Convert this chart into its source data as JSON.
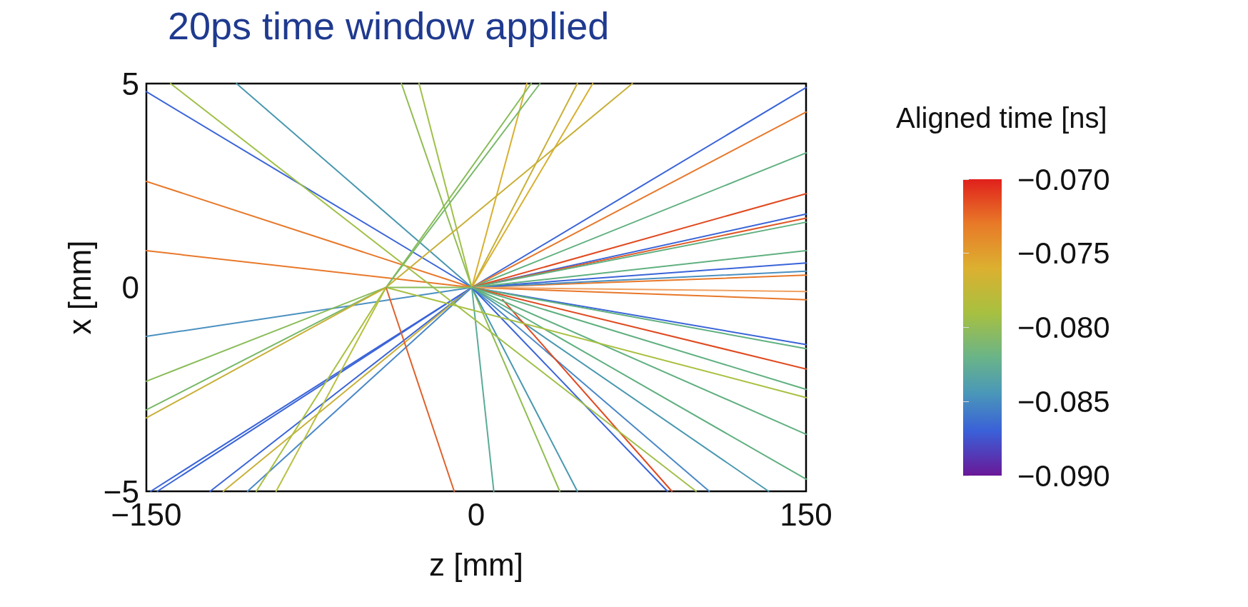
{
  "chart_data": {
    "type": "line",
    "title": "20ps time window applied",
    "xlabel": "z [mm]",
    "ylabel": "x [mm]",
    "clabel": "Aligned time [ns]",
    "xlim": [
      -150,
      150
    ],
    "xticks": [
      {
        "value": -150,
        "label": "−150"
      },
      0,
      150
    ],
    "ylim": [
      -5,
      5
    ],
    "yticks": [
      {
        "value": -5,
        "label": "−5"
      },
      0,
      5
    ],
    "clim": [
      -0.09,
      -0.07
    ],
    "cticks": [
      {
        "value": -0.09,
        "label": "−0.090"
      },
      {
        "value": -0.085,
        "label": "−0.085"
      },
      {
        "value": -0.08,
        "label": "−0.080"
      },
      {
        "value": -0.075,
        "label": "−0.075"
      },
      {
        "value": -0.07,
        "label": "−0.070"
      }
    ],
    "marker": "none",
    "series": [
      {
        "color": "#3a64d8",
        "x": [
          -150,
          -2,
          150
        ],
        "values": [
          4.8,
          0,
          -1.4
        ]
      },
      {
        "color": "#e8782a",
        "x": [
          -150,
          -2,
          150
        ],
        "values": [
          2.6,
          0,
          0.3
        ]
      },
      {
        "color": "#e8782a",
        "x": [
          -150,
          -2,
          150
        ],
        "values": [
          0.9,
          0,
          -0.3
        ]
      },
      {
        "color": "#4a90c0",
        "x": [
          -150,
          -2,
          150
        ],
        "values": [
          -1.2,
          0,
          0.4
        ]
      },
      {
        "color": "#3a64d8",
        "x": [
          -148,
          -2,
          150
        ],
        "values": [
          -5,
          0,
          4.9
        ]
      },
      {
        "color": "#3a64d8",
        "x": [
          -145,
          -2,
          150
        ],
        "values": [
          -5,
          0,
          1.8
        ]
      },
      {
        "color": "#3a64d8",
        "x": [
          -121,
          -2,
          150
        ],
        "values": [
          -5,
          0,
          0.6
        ]
      },
      {
        "color": "#c8b038",
        "x": [
          -115,
          -2,
          46
        ],
        "values": [
          -5,
          0,
          5
        ]
      },
      {
        "color": "#4a88c8",
        "x": [
          -104,
          -2,
          106
        ],
        "values": [
          -5,
          0,
          -5
        ]
      },
      {
        "color": "#4a98b0",
        "x": [
          -109,
          -2,
          133
        ],
        "values": [
          5,
          0,
          -5
        ]
      },
      {
        "color": "#90bc50",
        "x": [
          -34,
          -2,
          38
        ],
        "values": [
          5,
          0,
          -5
        ]
      },
      {
        "color": "#a0c048",
        "x": [
          -26,
          -2
        ],
        "values": [
          5,
          0
        ]
      },
      {
        "color": "#d8b030",
        "x": [
          -2,
          23
        ],
        "values": [
          0,
          5
        ]
      },
      {
        "color": "#d8b030",
        "x": [
          -2,
          53
        ],
        "values": [
          0,
          5
        ]
      },
      {
        "color": "#e8782a",
        "x": [
          -2,
          150
        ],
        "values": [
          0,
          4.3
        ]
      },
      {
        "color": "#60b080",
        "x": [
          -2,
          150
        ],
        "values": [
          0,
          3.3
        ]
      },
      {
        "color": "#e04a20",
        "x": [
          -2,
          150
        ],
        "values": [
          0,
          2.3
        ]
      },
      {
        "color": "#e05a28",
        "x": [
          -2,
          150
        ],
        "values": [
          0,
          1.7
        ]
      },
      {
        "color": "#60b080",
        "x": [
          -2,
          150
        ],
        "values": [
          0,
          1.6
        ]
      },
      {
        "color": "#60b080",
        "x": [
          -2,
          150
        ],
        "values": [
          0,
          0.9
        ]
      },
      {
        "color": "#f0a060",
        "x": [
          -2,
          150
        ],
        "values": [
          0,
          -0.1
        ]
      },
      {
        "color": "#60b080",
        "x": [
          -2,
          150
        ],
        "values": [
          0,
          -1.5
        ]
      },
      {
        "color": "#e04a20",
        "x": [
          -2,
          150
        ],
        "values": [
          0,
          -2.0
        ]
      },
      {
        "color": "#60b080",
        "x": [
          -2,
          150
        ],
        "values": [
          0,
          -2.5
        ]
      },
      {
        "color": "#5aaa98",
        "x": [
          -2,
          8
        ],
        "values": [
          0,
          -5
        ]
      },
      {
        "color": "#4a98b0",
        "x": [
          -2,
          46
        ],
        "values": [
          0,
          -5
        ]
      },
      {
        "color": "#3a64d8",
        "x": [
          -2,
          87
        ],
        "values": [
          0,
          -5
        ]
      },
      {
        "color": "#e04a20",
        "x": [
          12,
          89
        ],
        "values": [
          -0.3,
          -5
        ]
      },
      {
        "color": "#60b080",
        "x": [
          -2,
          150
        ],
        "values": [
          0,
          -4.7
        ]
      },
      {
        "color": "#60b080",
        "x": [
          -2,
          150
        ],
        "values": [
          0,
          -3.6
        ]
      },
      {
        "color": "#88bc58",
        "x": [
          -150,
          -41,
          25
        ],
        "values": [
          -2.3,
          0,
          5
        ]
      },
      {
        "color": "#78b868",
        "x": [
          -150,
          -41,
          29
        ],
        "values": [
          -3.0,
          0,
          5
        ]
      },
      {
        "color": "#c8b038",
        "x": [
          -150,
          -41,
          71
        ],
        "values": [
          -3.2,
          0,
          5
        ]
      },
      {
        "color": "#b8c040",
        "x": [
          -91,
          -41
        ],
        "values": [
          -5,
          0
        ]
      },
      {
        "color": "#a8c040",
        "x": [
          -100,
          -41,
          150
        ],
        "values": [
          -5,
          0,
          -2.7
        ]
      },
      {
        "color": "#e0602a",
        "x": [
          -41,
          -10
        ],
        "values": [
          0,
          -5
        ]
      },
      {
        "color": "#a0c048",
        "x": [
          -139,
          100
        ],
        "values": [
          5,
          -5
        ]
      },
      {
        "color": "#88bc58",
        "x": [
          -41,
          -2
        ],
        "values": [
          0,
          0
        ]
      }
    ]
  }
}
